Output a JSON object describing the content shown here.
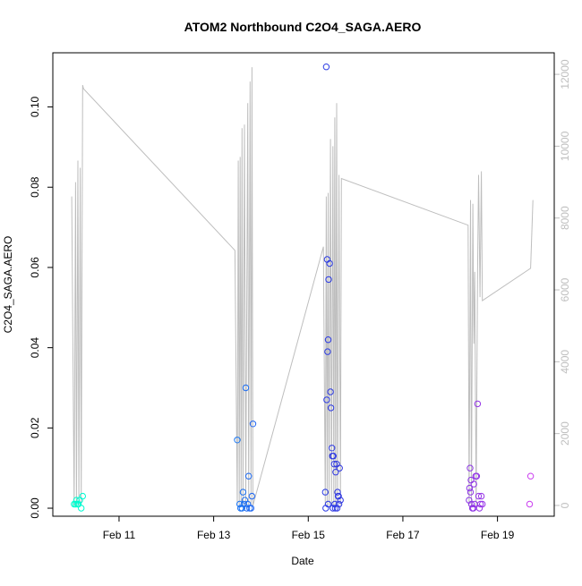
{
  "chart_data": {
    "type": "scatter",
    "title": "ATOM2 Northbound C2O4_SAGA.AERO",
    "xlabel": "Date",
    "ylabel": "C2O4_SAGA.AERO",
    "x_ticks": [
      "Feb 11",
      "Feb 13",
      "Feb 15",
      "Feb 17",
      "Feb 19"
    ],
    "x_tick_days": [
      11,
      13,
      15,
      17,
      19
    ],
    "xlim_days": [
      9.6,
      20.2
    ],
    "ylim": [
      -0.002,
      0.1135
    ],
    "y_ticks": [
      0.0,
      0.02,
      0.04,
      0.06,
      0.08,
      0.1
    ],
    "y_tick_labels": [
      "0.00",
      "0.02",
      "0.04",
      "0.06",
      "0.08",
      "0.10"
    ],
    "y2_lim": [
      -300,
      12600
    ],
    "y2_ticks": [
      0,
      2000,
      4000,
      6000,
      8000,
      10000,
      12000
    ],
    "y2_tick_labels": [
      "0",
      "2000",
      "4000",
      "6000",
      "8000",
      "10000",
      "12000"
    ],
    "colors": {
      "line": "#bebebe",
      "axis": "#000000",
      "axis2": "#bebebe",
      "point_palette": [
        "#00ffcc",
        "#00ccff",
        "#2060f0",
        "#3030e0",
        "#7030e0",
        "#d040f0"
      ]
    },
    "points": [
      {
        "x": 10.05,
        "y": 0.001
      },
      {
        "x": 10.08,
        "y": 0.001
      },
      {
        "x": 10.1,
        "y": 0.002
      },
      {
        "x": 10.12,
        "y": 0.001
      },
      {
        "x": 10.14,
        "y": 0.001
      },
      {
        "x": 10.17,
        "y": 0.002
      },
      {
        "x": 10.2,
        "y": 0.0
      },
      {
        "x": 10.23,
        "y": 0.003
      },
      {
        "x": 13.5,
        "y": 0.017
      },
      {
        "x": 13.55,
        "y": 0.001
      },
      {
        "x": 13.57,
        "y": 0.0
      },
      {
        "x": 13.6,
        "y": 0.0
      },
      {
        "x": 13.62,
        "y": 0.004
      },
      {
        "x": 13.64,
        "y": 0.001
      },
      {
        "x": 13.66,
        "y": 0.002
      },
      {
        "x": 13.68,
        "y": 0.03
      },
      {
        "x": 13.7,
        "y": 0.0
      },
      {
        "x": 13.72,
        "y": 0.001
      },
      {
        "x": 13.74,
        "y": 0.008
      },
      {
        "x": 13.76,
        "y": 0.0
      },
      {
        "x": 13.79,
        "y": 0.0
      },
      {
        "x": 13.81,
        "y": 0.003
      },
      {
        "x": 13.83,
        "y": 0.021
      },
      {
        "x": 15.38,
        "y": 0.11
      },
      {
        "x": 15.36,
        "y": 0.004
      },
      {
        "x": 15.37,
        "y": 0.0
      },
      {
        "x": 15.4,
        "y": 0.062
      },
      {
        "x": 15.43,
        "y": 0.057
      },
      {
        "x": 15.45,
        "y": 0.061
      },
      {
        "x": 15.42,
        "y": 0.042
      },
      {
        "x": 15.41,
        "y": 0.039
      },
      {
        "x": 15.47,
        "y": 0.029
      },
      {
        "x": 15.39,
        "y": 0.027
      },
      {
        "x": 15.48,
        "y": 0.025
      },
      {
        "x": 15.42,
        "y": 0.001
      },
      {
        "x": 15.5,
        "y": 0.015
      },
      {
        "x": 15.51,
        "y": 0.013
      },
      {
        "x": 15.53,
        "y": 0.013
      },
      {
        "x": 15.55,
        "y": 0.011
      },
      {
        "x": 15.57,
        "y": 0.0
      },
      {
        "x": 15.58,
        "y": 0.009
      },
      {
        "x": 15.6,
        "y": 0.011
      },
      {
        "x": 15.62,
        "y": 0.004
      },
      {
        "x": 15.64,
        "y": 0.003
      },
      {
        "x": 15.66,
        "y": 0.01
      },
      {
        "x": 15.56,
        "y": 0.001
      },
      {
        "x": 15.68,
        "y": 0.002
      },
      {
        "x": 15.61,
        "y": 0.0
      },
      {
        "x": 15.63,
        "y": 0.003
      },
      {
        "x": 15.65,
        "y": 0.001
      },
      {
        "x": 15.52,
        "y": 0.0
      },
      {
        "x": 18.42,
        "y": 0.01
      },
      {
        "x": 18.44,
        "y": 0.007
      },
      {
        "x": 18.41,
        "y": 0.005
      },
      {
        "x": 18.43,
        "y": 0.004
      },
      {
        "x": 18.4,
        "y": 0.002
      },
      {
        "x": 18.45,
        "y": 0.001
      },
      {
        "x": 18.47,
        "y": 0.0
      },
      {
        "x": 18.49,
        "y": 0.0
      },
      {
        "x": 18.5,
        "y": 0.006
      },
      {
        "x": 18.52,
        "y": 0.001
      },
      {
        "x": 18.54,
        "y": 0.008
      },
      {
        "x": 18.56,
        "y": 0.008
      },
      {
        "x": 18.58,
        "y": 0.026
      },
      {
        "x": 18.6,
        "y": 0.003
      },
      {
        "x": 18.62,
        "y": 0.0
      },
      {
        "x": 18.64,
        "y": 0.001
      },
      {
        "x": 18.66,
        "y": 0.003
      },
      {
        "x": 18.68,
        "y": 0.001
      },
      {
        "x": 19.7,
        "y": 0.008
      },
      {
        "x": 19.68,
        "y": 0.001
      }
    ],
    "line": [
      [
        10.0,
        8600
      ],
      [
        10.05,
        0
      ],
      [
        10.08,
        9000
      ],
      [
        10.1,
        0
      ],
      [
        10.13,
        9600
      ],
      [
        10.15,
        0
      ],
      [
        10.18,
        9400
      ],
      [
        10.2,
        0
      ],
      [
        10.23,
        11700
      ],
      [
        10.25,
        11600
      ],
      [
        13.45,
        7100
      ],
      [
        13.5,
        0
      ],
      [
        13.52,
        9600
      ],
      [
        13.54,
        0
      ],
      [
        13.56,
        9700
      ],
      [
        13.58,
        0
      ],
      [
        13.6,
        10500
      ],
      [
        13.62,
        0
      ],
      [
        13.65,
        10600
      ],
      [
        13.68,
        0
      ],
      [
        13.72,
        11200
      ],
      [
        13.74,
        0
      ],
      [
        13.77,
        11800
      ],
      [
        13.79,
        0
      ],
      [
        13.81,
        12200
      ],
      [
        13.83,
        0
      ],
      [
        15.32,
        7200
      ],
      [
        15.36,
        0
      ],
      [
        15.38,
        8600
      ],
      [
        15.4,
        0
      ],
      [
        15.42,
        8700
      ],
      [
        15.44,
        0
      ],
      [
        15.47,
        10200
      ],
      [
        15.49,
        0
      ],
      [
        15.52,
        10000
      ],
      [
        15.54,
        0
      ],
      [
        15.56,
        10800
      ],
      [
        15.58,
        0
      ],
      [
        15.6,
        11200
      ],
      [
        15.62,
        0
      ],
      [
        15.65,
        9200
      ],
      [
        15.68,
        0
      ],
      [
        15.7,
        9100
      ],
      [
        18.38,
        7800
      ],
      [
        18.4,
        0
      ],
      [
        18.43,
        8500
      ],
      [
        18.45,
        0
      ],
      [
        18.48,
        8400
      ],
      [
        18.5,
        4500
      ],
      [
        18.52,
        6500
      ],
      [
        18.55,
        0
      ],
      [
        18.58,
        6600
      ],
      [
        18.6,
        9200
      ],
      [
        18.63,
        5800
      ],
      [
        18.66,
        9300
      ],
      [
        18.68,
        5700
      ],
      [
        19.7,
        6600
      ],
      [
        19.75,
        8500
      ]
    ]
  }
}
